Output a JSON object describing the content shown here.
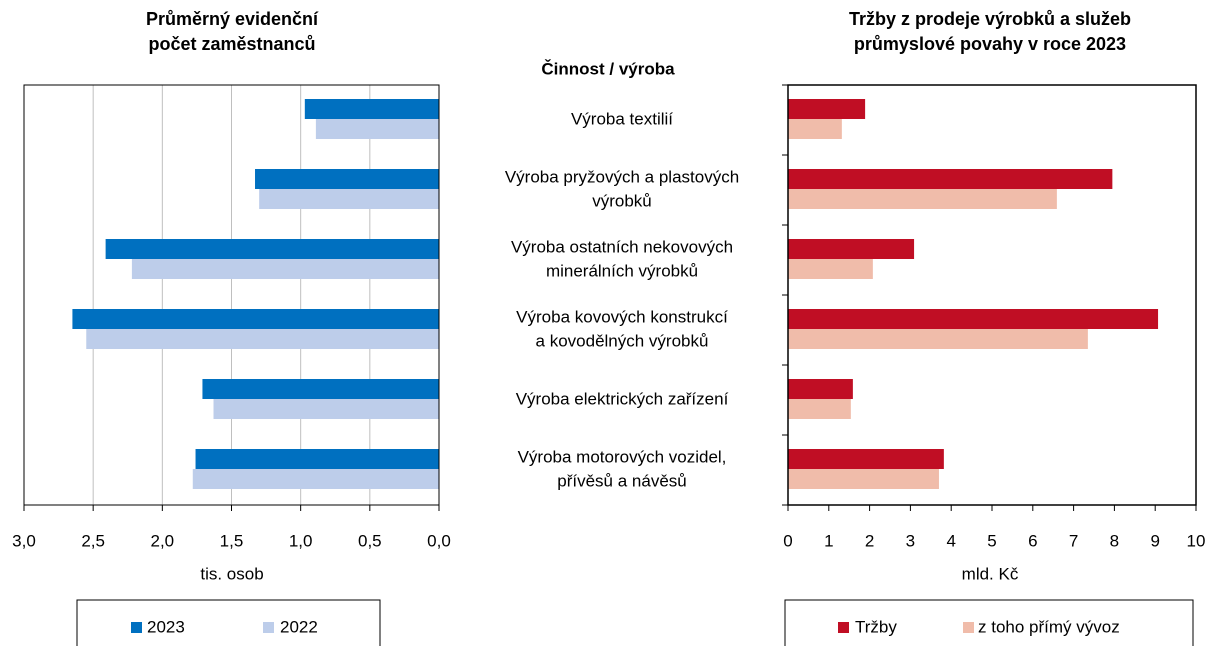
{
  "category_header": "Činnost / výroba",
  "categories": [
    [
      "Výroba textilií"
    ],
    [
      "Výroba pryžových a plastových",
      "výrobků"
    ],
    [
      "Výroba ostatních nekovových",
      "minerálních výrobků"
    ],
    [
      "Výroba kovových konstrukcí",
      "a kovodělných výrobků"
    ],
    [
      "Výroba elektrických zařízení"
    ],
    [
      "Výroba motorových vozidel,",
      "přívěsů a návěsů"
    ]
  ],
  "chart_data": [
    {
      "type": "hbar",
      "title": [
        "Průměrný evidenční",
        "počet zaměstnanců"
      ],
      "x_label": "tis. osob",
      "xlim": [
        3,
        0
      ],
      "xticks": [
        {
          "value": 3,
          "label": "3,0"
        },
        {
          "value": 2.5,
          "label": "2,5"
        },
        {
          "value": 2,
          "label": "2,0"
        },
        {
          "value": 1.5,
          "label": "1,5"
        },
        {
          "value": 1,
          "label": "1,0"
        },
        {
          "value": 0.5,
          "label": "0,5"
        },
        {
          "value": 0,
          "label": "0,0"
        }
      ],
      "grid": true,
      "series": [
        {
          "name": "2023",
          "color": "#0070c0",
          "values": [
            0.97,
            1.33,
            2.41,
            2.65,
            1.71,
            1.76
          ]
        },
        {
          "name": "2022",
          "color": "#bdcdea",
          "values": [
            0.89,
            1.3,
            2.22,
            2.55,
            1.63,
            1.78
          ]
        }
      ]
    },
    {
      "type": "hbar",
      "title": [
        "Tržby z prodeje výrobků a služeb",
        "průmyslové povahy v roce 2023"
      ],
      "x_label": "mld. Kč",
      "xlim": [
        0,
        10
      ],
      "xticks": [
        0,
        1,
        2,
        3,
        4,
        5,
        6,
        7,
        8,
        9,
        10
      ],
      "grid": false,
      "series": [
        {
          "name": "Tržby",
          "color": "#c00e24",
          "values": [
            1.89,
            7.95,
            3.09,
            9.07,
            1.59,
            3.82
          ]
        },
        {
          "name": "z toho přímý vývoz",
          "color": "#f0bcaa",
          "values": [
            1.32,
            6.59,
            2.08,
            7.35,
            1.54,
            3.7
          ]
        }
      ]
    }
  ]
}
